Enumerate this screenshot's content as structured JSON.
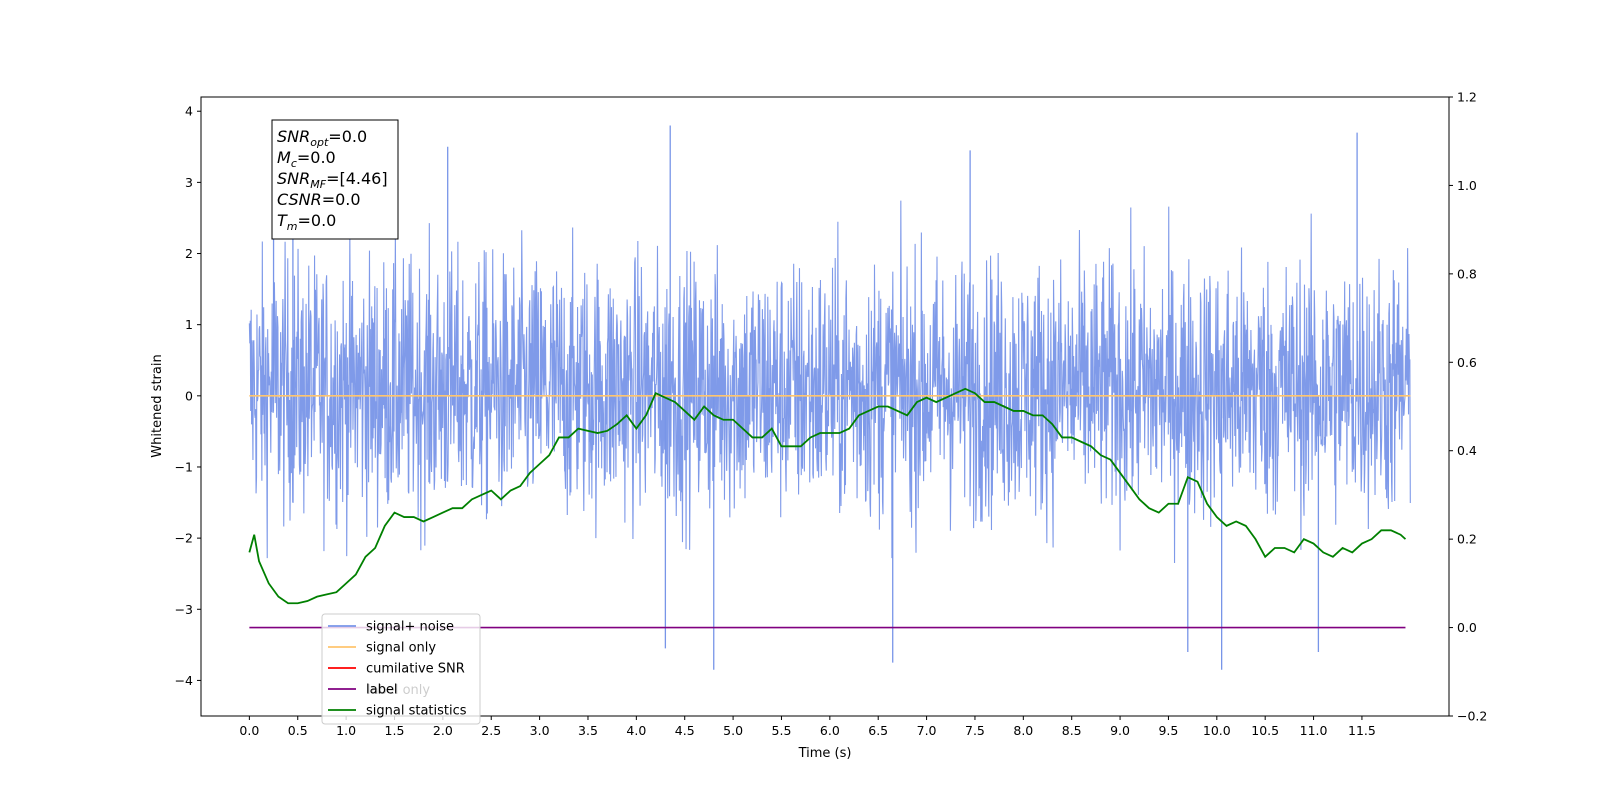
{
  "chart_data": {
    "type": "line",
    "title": "",
    "xlabel": "Time (s)",
    "ylabel_left": "Whitened strain",
    "ylabel_right": "",
    "xlim": [
      -0.5,
      12.4
    ],
    "ylim_left": [
      -4.5,
      4.2
    ],
    "ylim_right": [
      -0.2,
      1.2
    ],
    "x_ticks": [
      0.0,
      0.5,
      1.0,
      1.5,
      2.0,
      2.5,
      3.0,
      3.5,
      4.0,
      4.5,
      5.0,
      5.5,
      6.0,
      6.5,
      7.0,
      7.5,
      8.0,
      8.5,
      9.0,
      9.5,
      10.0,
      10.5,
      11.0,
      11.5
    ],
    "x_tick_labels": [
      "0.0",
      "0.5",
      "1.0",
      "1.5",
      "2.0",
      "2.5",
      "3.0",
      "3.5",
      "4.0",
      "4.5",
      "5.0",
      "5.5",
      "6.0",
      "6.5",
      "7.0",
      "7.5",
      "8.0",
      "8.5",
      "9.0",
      "9.5",
      "10.0",
      "10.5",
      "11.0",
      "11.5"
    ],
    "y_left_ticks": [
      4,
      3,
      2,
      1,
      0,
      -1,
      -2,
      -3,
      -4
    ],
    "y_left_tick_labels": [
      "4",
      "3",
      "2",
      "1",
      "0",
      "−1",
      "−2",
      "−3",
      "−4"
    ],
    "y_right_ticks": [
      1.2,
      1.0,
      0.8,
      0.6,
      0.4,
      0.2,
      0.0,
      -0.2
    ],
    "y_right_tick_labels": [
      "1.2",
      "1.0",
      "0.8",
      "0.6",
      "0.4",
      "0.2",
      "0.0",
      "−0.2"
    ],
    "grid": false,
    "legend_placement": "lower-left",
    "stats_box": {
      "lines": [
        {
          "sym": "SNR",
          "sub": "opt",
          "value": "=0.0"
        },
        {
          "sym": "M",
          "sub": "c",
          "value": "=0.0"
        },
        {
          "sym": "SNR",
          "sub": "MF",
          "value": "=[4.46]"
        },
        {
          "sym": "CSNR",
          "sub": "",
          "value": "=0.0"
        },
        {
          "sym": "T",
          "sub": "m",
          "value": "=0.0"
        }
      ]
    },
    "legend": [
      {
        "label": "signal+ noise",
        "color": "#7895e8"
      },
      {
        "label": "signal only",
        "color": "#ffc56e"
      },
      {
        "label": "cumilative SNR",
        "color": "#ff0000"
      },
      {
        "label": "label",
        "color": "#800080"
      },
      {
        "label": "signal statistics",
        "color": "#008000"
      }
    ],
    "hidden_legend_text": "label only",
    "series": [
      {
        "name": "signal+ noise",
        "axis": "left",
        "color": "#7895e8",
        "x_range": [
          0.0,
          12.0
        ],
        "envelope_typical": [
          -1.8,
          1.8
        ],
        "peaks_max": [
          [
            0.25,
            3.1
          ],
          [
            0.45,
            3.4
          ],
          [
            2.05,
            3.5
          ],
          [
            4.35,
            3.8
          ],
          [
            7.45,
            3.45
          ],
          [
            11.45,
            3.7
          ]
        ],
        "peaks_min": [
          [
            4.3,
            -3.55
          ],
          [
            4.8,
            -3.85
          ],
          [
            6.65,
            -3.75
          ],
          [
            9.7,
            -3.6
          ],
          [
            10.05,
            -3.85
          ],
          [
            11.05,
            -3.6
          ]
        ]
      },
      {
        "name": "signal only",
        "axis": "left",
        "color": "#ffc56e",
        "x": [
          0.0,
          12.0
        ],
        "y": [
          0.0,
          0.0
        ]
      },
      {
        "name": "label",
        "axis": "right",
        "color": "#800080",
        "x": [
          0.0,
          11.95
        ],
        "y": [
          0.0,
          0.0
        ]
      },
      {
        "name": "signal statistics",
        "axis": "right",
        "color": "#008000",
        "x": [
          0.0,
          0.05,
          0.1,
          0.2,
          0.3,
          0.4,
          0.5,
          0.6,
          0.7,
          0.8,
          0.9,
          1.0,
          1.1,
          1.2,
          1.3,
          1.4,
          1.5,
          1.6,
          1.7,
          1.8,
          1.9,
          2.0,
          2.1,
          2.2,
          2.3,
          2.4,
          2.5,
          2.6,
          2.7,
          2.8,
          2.9,
          3.0,
          3.1,
          3.2,
          3.3,
          3.4,
          3.5,
          3.6,
          3.7,
          3.8,
          3.9,
          4.0,
          4.1,
          4.2,
          4.3,
          4.4,
          4.5,
          4.6,
          4.7,
          4.8,
          4.9,
          5.0,
          5.1,
          5.2,
          5.3,
          5.4,
          5.5,
          5.6,
          5.7,
          5.8,
          5.9,
          6.0,
          6.1,
          6.2,
          6.3,
          6.4,
          6.5,
          6.6,
          6.7,
          6.8,
          6.9,
          7.0,
          7.1,
          7.2,
          7.3,
          7.4,
          7.5,
          7.6,
          7.7,
          7.8,
          7.9,
          8.0,
          8.1,
          8.2,
          8.3,
          8.4,
          8.5,
          8.6,
          8.7,
          8.8,
          8.9,
          9.0,
          9.1,
          9.2,
          9.3,
          9.4,
          9.5,
          9.6,
          9.7,
          9.8,
          9.9,
          10.0,
          10.1,
          10.2,
          10.3,
          10.4,
          10.5,
          10.6,
          10.7,
          10.8,
          10.9,
          11.0,
          11.1,
          11.2,
          11.3,
          11.4,
          11.5,
          11.6,
          11.7,
          11.8,
          11.9,
          11.95
        ],
        "y": [
          0.17,
          0.21,
          0.15,
          0.1,
          0.07,
          0.055,
          0.055,
          0.06,
          0.07,
          0.075,
          0.08,
          0.1,
          0.12,
          0.16,
          0.18,
          0.23,
          0.26,
          0.25,
          0.25,
          0.24,
          0.25,
          0.26,
          0.27,
          0.27,
          0.29,
          0.3,
          0.31,
          0.29,
          0.31,
          0.32,
          0.35,
          0.37,
          0.39,
          0.43,
          0.43,
          0.45,
          0.445,
          0.44,
          0.445,
          0.46,
          0.48,
          0.45,
          0.48,
          0.53,
          0.52,
          0.51,
          0.49,
          0.47,
          0.5,
          0.48,
          0.47,
          0.47,
          0.45,
          0.43,
          0.43,
          0.45,
          0.41,
          0.41,
          0.41,
          0.43,
          0.44,
          0.44,
          0.44,
          0.45,
          0.48,
          0.49,
          0.5,
          0.5,
          0.49,
          0.48,
          0.51,
          0.52,
          0.51,
          0.52,
          0.53,
          0.54,
          0.53,
          0.51,
          0.51,
          0.5,
          0.49,
          0.49,
          0.48,
          0.48,
          0.46,
          0.43,
          0.43,
          0.42,
          0.41,
          0.39,
          0.38,
          0.35,
          0.32,
          0.29,
          0.27,
          0.26,
          0.28,
          0.28,
          0.34,
          0.33,
          0.28,
          0.25,
          0.23,
          0.24,
          0.23,
          0.2,
          0.16,
          0.18,
          0.18,
          0.17,
          0.2,
          0.19,
          0.17,
          0.16,
          0.18,
          0.17,
          0.19,
          0.2,
          0.22,
          0.22,
          0.21,
          0.2
        ]
      }
    ]
  }
}
